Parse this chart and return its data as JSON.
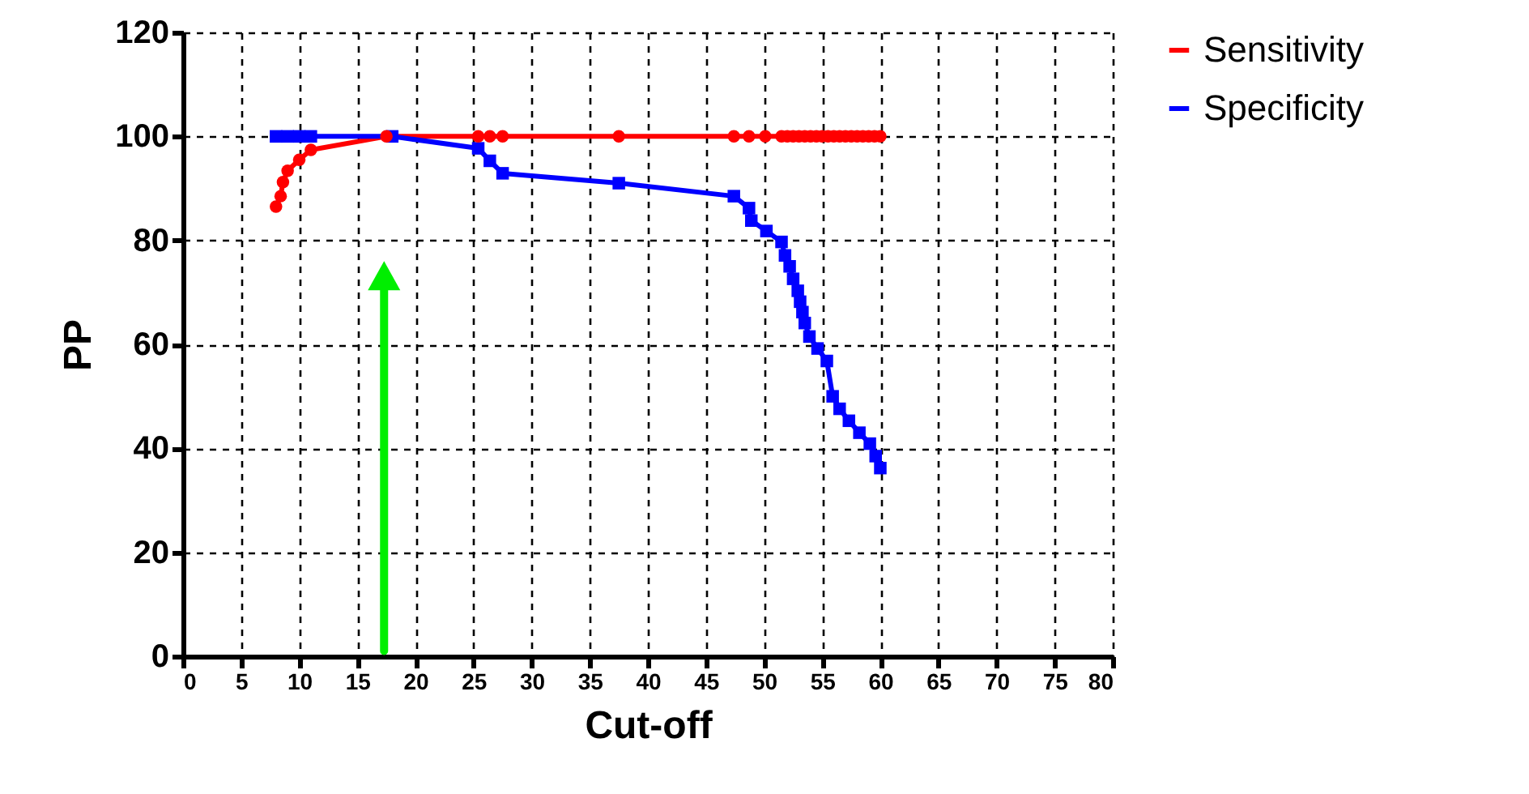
{
  "chart_data": {
    "type": "line",
    "xlabel": "Cut-off",
    "ylabel": "PP",
    "xlim": [
      0,
      80
    ],
    "xticks": [
      0,
      5,
      10,
      15,
      20,
      25,
      30,
      35,
      40,
      45,
      50,
      55,
      60,
      65,
      70,
      75,
      80
    ],
    "ylim": [
      0,
      120
    ],
    "yticks": [
      0,
      20,
      40,
      60,
      80,
      100,
      120
    ],
    "grid": true,
    "legend": "top right",
    "series": [
      {
        "name": "Sensitivity",
        "color": "#ff0000",
        "marker": "circle",
        "x": [
          8,
          8.4,
          8.6,
          9,
          10,
          11,
          17.5,
          25.4,
          26.4,
          27.5,
          37.5,
          47.4,
          48.7,
          50.1,
          51.5,
          52,
          52.5,
          53,
          53.5,
          54,
          54.5,
          55,
          55.5,
          56,
          56.5,
          57,
          57.5,
          58,
          58.5,
          59,
          59.5,
          60
        ],
        "values": [
          86.5,
          88.5,
          91.2,
          93.4,
          95.5,
          97.4,
          100,
          100,
          100,
          100,
          100,
          100,
          100,
          100,
          100,
          100,
          100,
          100,
          100,
          100,
          100,
          100,
          100,
          100,
          100,
          100,
          100,
          100,
          100,
          100,
          100,
          100
        ]
      },
      {
        "name": "Specificity",
        "color": "#0000ff",
        "marker": "square",
        "x": [
          8,
          9,
          10,
          11,
          18,
          25.4,
          26.4,
          27.5,
          37.5,
          47.4,
          48.7,
          48.9,
          50.2,
          51.5,
          51.8,
          52.2,
          52.5,
          52.9,
          53.1,
          53.3,
          53.5,
          53.9,
          54.6,
          55.4,
          55.9,
          56.5,
          57.3,
          58.2,
          59.1,
          59.6,
          60
        ],
        "values": [
          100,
          100,
          100,
          100,
          100,
          97.7,
          95.3,
          92.9,
          91,
          88.5,
          86.2,
          83.8,
          81.8,
          79.7,
          77.1,
          75,
          72.6,
          70.3,
          68.2,
          66.2,
          64.1,
          61.5,
          59.2,
          56.8,
          50,
          47.6,
          45.3,
          43,
          40.9,
          38.5,
          36.2
        ]
      }
    ]
  }
}
